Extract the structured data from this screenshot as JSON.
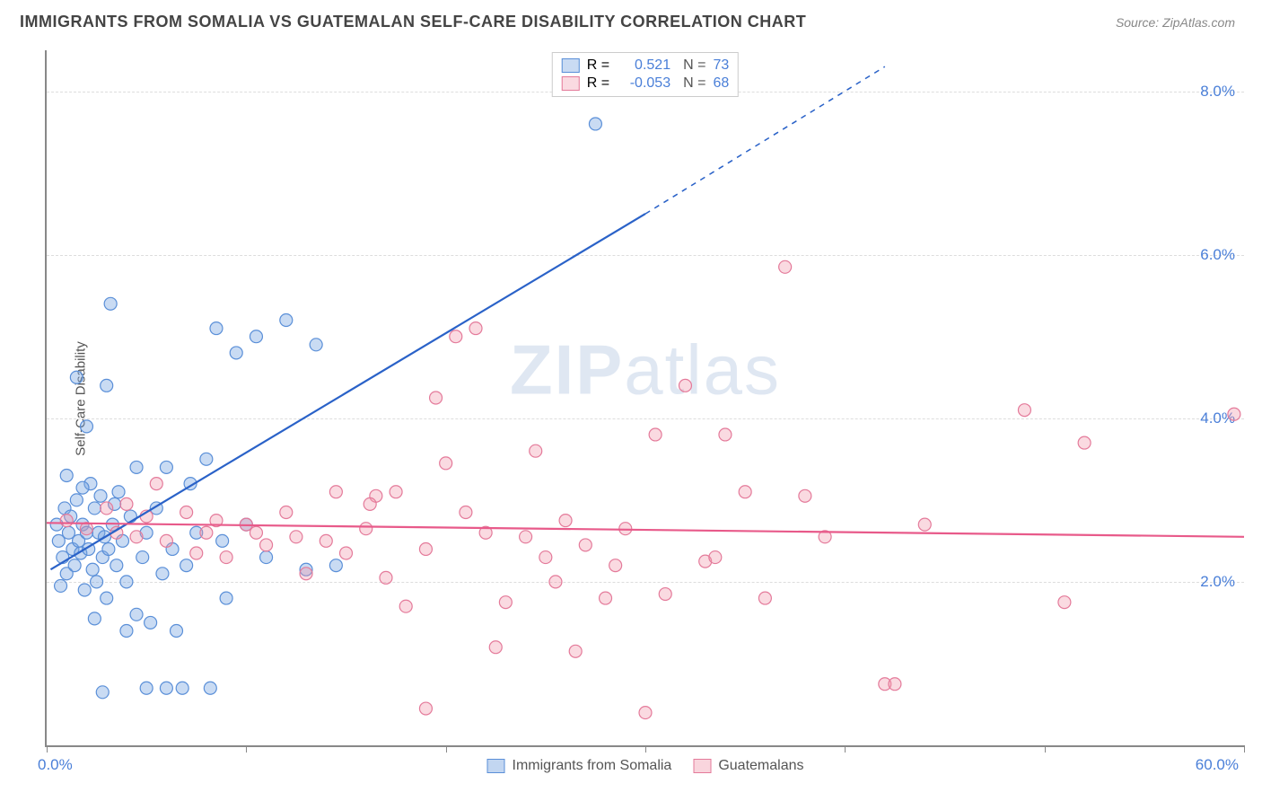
{
  "header": {
    "title": "IMMIGRANTS FROM SOMALIA VS GUATEMALAN SELF-CARE DISABILITY CORRELATION CHART",
    "source": "Source: ZipAtlas.com"
  },
  "chart": {
    "type": "scatter",
    "ylabel": "Self-Care Disability",
    "xlim": [
      0,
      60
    ],
    "ylim": [
      0,
      8.5
    ],
    "background_color": "#ffffff",
    "grid_color": "#dddddd",
    "axis_color": "#888888",
    "tick_label_color": "#4a7fd8",
    "ylabel_color": "#555555",
    "y_ticks": [
      {
        "v": 2.0,
        "label": "2.0%"
      },
      {
        "v": 4.0,
        "label": "4.0%"
      },
      {
        "v": 6.0,
        "label": "6.0%"
      },
      {
        "v": 8.0,
        "label": "8.0%"
      }
    ],
    "x_tick_positions": [
      0,
      10,
      20,
      30,
      40,
      50,
      60
    ],
    "x_left_label": "0.0%",
    "x_right_label": "60.0%",
    "watermark": {
      "text_bold": "ZIP",
      "text_light": "atlas",
      "color": "rgba(140,170,210,0.28)"
    },
    "series": [
      {
        "id": "somalia",
        "label": "Immigrants from Somalia",
        "color_fill": "rgba(120,165,225,0.4)",
        "color_stroke": "#5a8fd8",
        "R": "0.521",
        "N": "73",
        "marker_radius": 7,
        "trend": {
          "x1": 0.2,
          "y1": 2.15,
          "x2": 30,
          "y2": 6.5,
          "x3": 42,
          "y3": 8.3,
          "color": "#2a62c8",
          "solid_width": 2.2,
          "dash": "6,6"
        },
        "points": [
          [
            0.5,
            2.7
          ],
          [
            0.6,
            2.5
          ],
          [
            0.8,
            2.3
          ],
          [
            0.9,
            2.9
          ],
          [
            1.0,
            2.1
          ],
          [
            1.1,
            2.6
          ],
          [
            1.2,
            2.8
          ],
          [
            1.3,
            2.4
          ],
          [
            1.4,
            2.2
          ],
          [
            1.5,
            3.0
          ],
          [
            1.6,
            2.5
          ],
          [
            1.7,
            2.35
          ],
          [
            1.8,
            2.7
          ],
          [
            1.9,
            1.9
          ],
          [
            2.0,
            2.6
          ],
          [
            2.1,
            2.4
          ],
          [
            2.2,
            3.2
          ],
          [
            2.3,
            2.15
          ],
          [
            2.4,
            2.9
          ],
          [
            2.5,
            2.0
          ],
          [
            2.6,
            2.6
          ],
          [
            2.7,
            3.05
          ],
          [
            2.8,
            2.3
          ],
          [
            2.9,
            2.55
          ],
          [
            3.0,
            1.8
          ],
          [
            3.1,
            2.4
          ],
          [
            3.3,
            2.7
          ],
          [
            3.5,
            2.2
          ],
          [
            3.6,
            3.1
          ],
          [
            3.8,
            2.5
          ],
          [
            4.0,
            2.0
          ],
          [
            4.2,
            2.8
          ],
          [
            4.5,
            1.6
          ],
          [
            4.8,
            2.3
          ],
          [
            5.0,
            2.6
          ],
          [
            5.2,
            1.5
          ],
          [
            5.5,
            2.9
          ],
          [
            5.8,
            2.1
          ],
          [
            6.0,
            3.4
          ],
          [
            6.3,
            2.4
          ],
          [
            6.5,
            1.4
          ],
          [
            6.8,
            0.7
          ],
          [
            7.0,
            2.2
          ],
          [
            7.5,
            2.6
          ],
          [
            8.0,
            3.5
          ],
          [
            8.2,
            0.7
          ],
          [
            8.5,
            5.1
          ],
          [
            9.0,
            1.8
          ],
          [
            9.5,
            4.8
          ],
          [
            3.2,
            5.4
          ],
          [
            3.0,
            4.4
          ],
          [
            2.0,
            3.9
          ],
          [
            1.5,
            4.5
          ],
          [
            4.5,
            3.4
          ],
          [
            5.0,
            0.7
          ],
          [
            6.0,
            0.7
          ],
          [
            10.5,
            5.0
          ],
          [
            12.0,
            5.2
          ],
          [
            13.5,
            4.9
          ],
          [
            7.2,
            3.2
          ],
          [
            11.0,
            2.3
          ],
          [
            13.0,
            2.15
          ],
          [
            14.5,
            2.2
          ],
          [
            8.8,
            2.5
          ],
          [
            10.0,
            2.7
          ],
          [
            2.8,
            0.65
          ],
          [
            4.0,
            1.4
          ],
          [
            27.5,
            7.6
          ],
          [
            1.0,
            3.3
          ],
          [
            1.8,
            3.15
          ],
          [
            0.7,
            1.95
          ],
          [
            2.4,
            1.55
          ],
          [
            3.4,
            2.95
          ]
        ]
      },
      {
        "id": "guatemalans",
        "label": "Guatemalans",
        "color_fill": "rgba(240,150,170,0.35)",
        "color_stroke": "#e47a9a",
        "R": "-0.053",
        "N": "68",
        "marker_radius": 7,
        "trend": {
          "x1": 0,
          "y1": 2.72,
          "x2": 60,
          "y2": 2.55,
          "color": "#e85a8a",
          "solid_width": 2.2
        },
        "points": [
          [
            1.0,
            2.75
          ],
          [
            2.0,
            2.65
          ],
          [
            3.0,
            2.9
          ],
          [
            3.5,
            2.6
          ],
          [
            4.0,
            2.95
          ],
          [
            4.5,
            2.55
          ],
          [
            5.0,
            2.8
          ],
          [
            5.5,
            3.2
          ],
          [
            6.0,
            2.5
          ],
          [
            7.0,
            2.85
          ],
          [
            8.0,
            2.6
          ],
          [
            9.0,
            2.3
          ],
          [
            10.0,
            2.7
          ],
          [
            11.0,
            2.45
          ],
          [
            12.0,
            2.85
          ],
          [
            13.0,
            2.1
          ],
          [
            14.0,
            2.5
          ],
          [
            14.5,
            3.1
          ],
          [
            15.0,
            2.35
          ],
          [
            16.0,
            2.65
          ],
          [
            16.5,
            3.05
          ],
          [
            17.0,
            2.05
          ],
          [
            17.5,
            3.1
          ],
          [
            18.0,
            1.7
          ],
          [
            19.0,
            2.4
          ],
          [
            19.5,
            4.25
          ],
          [
            20.0,
            3.45
          ],
          [
            20.5,
            5.0
          ],
          [
            21.0,
            2.85
          ],
          [
            21.5,
            5.1
          ],
          [
            22.0,
            2.6
          ],
          [
            22.5,
            1.2
          ],
          [
            23.0,
            1.75
          ],
          [
            24.0,
            2.55
          ],
          [
            24.5,
            3.6
          ],
          [
            25.0,
            2.3
          ],
          [
            25.5,
            2.0
          ],
          [
            26.0,
            2.75
          ],
          [
            26.5,
            1.15
          ],
          [
            27.0,
            2.45
          ],
          [
            28.0,
            1.8
          ],
          [
            28.5,
            2.2
          ],
          [
            29.0,
            2.65
          ],
          [
            30.0,
            0.4
          ],
          [
            30.5,
            3.8
          ],
          [
            31.0,
            1.85
          ],
          [
            32.0,
            4.4
          ],
          [
            33.0,
            2.25
          ],
          [
            33.5,
            2.3
          ],
          [
            34.0,
            3.8
          ],
          [
            35.0,
            3.1
          ],
          [
            36.0,
            1.8
          ],
          [
            37.0,
            5.85
          ],
          [
            38.0,
            3.05
          ],
          [
            39.0,
            2.55
          ],
          [
            42.0,
            0.75
          ],
          [
            42.5,
            0.75
          ],
          [
            44.0,
            2.7
          ],
          [
            49.0,
            4.1
          ],
          [
            51.0,
            1.75
          ],
          [
            52.0,
            3.7
          ],
          [
            59.5,
            4.05
          ],
          [
            19.0,
            0.45
          ],
          [
            7.5,
            2.35
          ],
          [
            8.5,
            2.75
          ],
          [
            10.5,
            2.6
          ],
          [
            12.5,
            2.55
          ],
          [
            16.2,
            2.95
          ]
        ]
      }
    ],
    "bottom_legend": [
      {
        "swatch": "blue",
        "label": "Immigrants from Somalia"
      },
      {
        "swatch": "pink",
        "label": "Guatemalans"
      }
    ]
  }
}
